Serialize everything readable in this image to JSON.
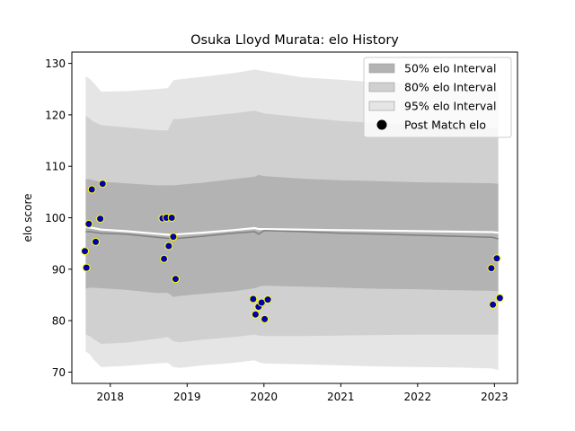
{
  "chart_data": {
    "type": "area",
    "title": "Osuka Lloyd Murata: elo History",
    "xlabel": "",
    "ylabel": "elo score",
    "xlim": [
      2017.5,
      2023.3
    ],
    "ylim": [
      67.8,
      132.2
    ],
    "x_ticks": [
      {
        "value": 2018,
        "label": "2018"
      },
      {
        "value": 2019,
        "label": "2019"
      },
      {
        "value": 2020,
        "label": "2020"
      },
      {
        "value": 2021,
        "label": "2021"
      },
      {
        "value": 2022,
        "label": "2022"
      },
      {
        "value": 2023,
        "label": "2023"
      }
    ],
    "y_ticks": [
      {
        "value": 70,
        "label": "70"
      },
      {
        "value": 80,
        "label": "80"
      },
      {
        "value": 90,
        "label": "90"
      },
      {
        "value": 100,
        "label": "100"
      },
      {
        "value": 110,
        "label": "110"
      },
      {
        "value": 120,
        "label": "120"
      },
      {
        "value": 130,
        "label": "130"
      }
    ],
    "grid": false,
    "legend_position": "top-right",
    "x": [
      2017.68,
      2017.73,
      2017.78,
      2017.88,
      2018.2,
      2018.6,
      2018.75,
      2018.82,
      2018.9,
      2019.2,
      2019.6,
      2019.88,
      2019.93,
      2020.0,
      2020.5,
      2021.0,
      2021.5,
      2022.0,
      2022.5,
      2022.97,
      2023.05
    ],
    "bands": [
      {
        "name": "95% elo Interval",
        "color": "#e5e5e5",
        "lower": [
          74.0,
          73.5,
          72.5,
          71.0,
          71.2,
          71.7,
          71.8,
          71.0,
          70.8,
          71.3,
          71.8,
          72.3,
          71.9,
          71.7,
          71.5,
          71.3,
          71.1,
          71.0,
          70.9,
          70.7,
          70.4
        ],
        "upper": [
          127.5,
          127.0,
          126.3,
          124.5,
          124.6,
          125.0,
          125.2,
          126.7,
          126.9,
          127.4,
          128.1,
          128.8,
          128.7,
          128.5,
          127.3,
          126.8,
          126.3,
          126.0,
          125.7,
          125.3,
          124.7
        ]
      },
      {
        "name": "80% elo Interval",
        "color": "#d0d0d0",
        "lower": [
          77.3,
          77.0,
          76.5,
          75.5,
          75.7,
          76.5,
          76.8,
          76.0,
          75.8,
          76.3,
          76.8,
          77.3,
          77.1,
          77.0,
          77.0,
          77.1,
          77.2,
          77.3,
          77.3,
          77.3,
          77.3
        ],
        "upper": [
          119.8,
          119.3,
          118.7,
          118.0,
          117.6,
          117.0,
          117.0,
          119.2,
          119.2,
          119.7,
          120.3,
          120.8,
          120.6,
          120.3,
          119.5,
          118.8,
          118.4,
          118.1,
          117.8,
          117.5,
          117.3
        ]
      },
      {
        "name": "50% elo Interval",
        "color": "#b3b3b3",
        "lower": [
          86.2,
          86.4,
          86.4,
          86.3,
          86.0,
          85.4,
          85.4,
          84.6,
          84.8,
          85.2,
          85.7,
          86.3,
          86.6,
          86.8,
          86.6,
          86.4,
          86.2,
          86.1,
          85.9,
          85.8,
          85.7
        ],
        "upper": [
          107.5,
          107.5,
          107.3,
          107.0,
          106.7,
          106.3,
          106.3,
          106.3,
          106.4,
          106.8,
          107.5,
          108.0,
          108.3,
          108.1,
          107.6,
          107.3,
          107.1,
          106.9,
          106.8,
          106.7,
          106.6
        ]
      }
    ],
    "median": [
      97.3,
      97.3,
      97.2,
      97.0,
      96.8,
      96.2,
      96.0,
      96.0,
      96.0,
      96.4,
      97.0,
      97.3,
      96.8,
      97.5,
      97.3,
      97.0,
      96.8,
      96.6,
      96.4,
      96.2,
      95.9
    ],
    "mean": [
      98.2,
      98.1,
      98.0,
      97.7,
      97.4,
      96.9,
      96.7,
      96.7,
      96.8,
      97.1,
      97.6,
      98.0,
      97.8,
      97.8,
      97.7,
      97.6,
      97.5,
      97.4,
      97.3,
      97.2,
      97.1
    ],
    "points_series": {
      "name": "Post Match elo",
      "x": [
        2017.67,
        2017.69,
        2017.72,
        2017.76,
        2017.81,
        2017.87,
        2017.9,
        2018.68,
        2018.7,
        2018.73,
        2018.76,
        2018.8,
        2018.82,
        2018.85,
        2019.86,
        2019.89,
        2019.93,
        2019.97,
        2020.01,
        2020.05,
        2022.96,
        2022.98,
        2023.03,
        2023.07
      ],
      "y": [
        93.5,
        90.3,
        98.8,
        105.5,
        95.3,
        99.8,
        106.6,
        99.9,
        92.0,
        100.0,
        94.5,
        100.0,
        96.3,
        88.1,
        84.2,
        81.2,
        82.7,
        83.5,
        80.3,
        84.1,
        90.2,
        83.1,
        92.1,
        84.4
      ],
      "fill": "#0000aa",
      "edge": "#ffff00"
    },
    "legend": [
      {
        "label": "50% elo Interval",
        "swatch": "#b3b3b3",
        "kind": "box"
      },
      {
        "label": "80% elo Interval",
        "swatch": "#d0d0d0",
        "kind": "box"
      },
      {
        "label": "95% elo Interval",
        "swatch": "#e5e5e5",
        "kind": "box"
      },
      {
        "label": "Post Match elo",
        "swatch": "#000000",
        "kind": "dot"
      }
    ]
  }
}
